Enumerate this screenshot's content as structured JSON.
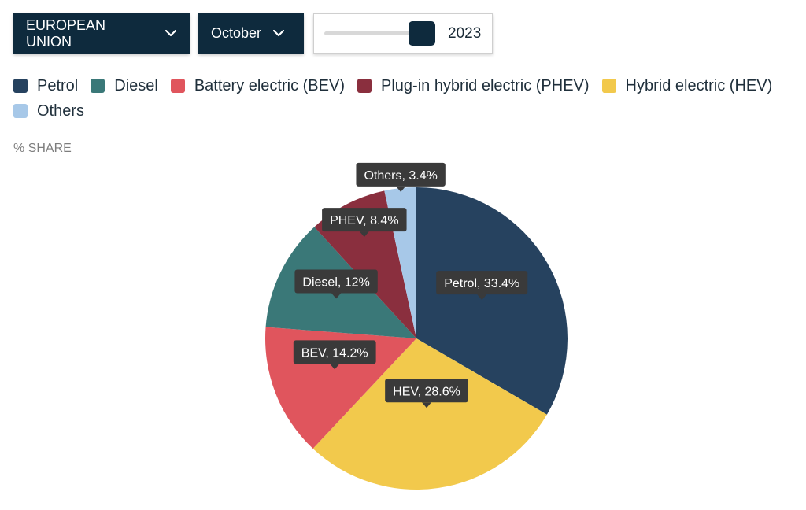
{
  "controls": {
    "region": "EUROPEAN UNION",
    "month": "October",
    "year": "2023",
    "year_level": 0.92,
    "chevron_icon": "chevron-down-icon"
  },
  "axis_label": "% SHARE",
  "colors": {
    "dark_navy": "#0e2a3d",
    "label_bg": "#3a3a3a"
  },
  "chart_data": {
    "type": "pie",
    "title": "",
    "unit": "%",
    "slices": [
      {
        "legend": "Petrol",
        "label": "Petrol, 33.4%",
        "value": 33.4,
        "color": "#26425f"
      },
      {
        "legend": "Hybrid electric (HEV)",
        "label": "HEV, 28.6%",
        "value": 28.6,
        "color": "#f2c94c"
      },
      {
        "legend": "Battery electric (BEV)",
        "label": "BEV, 14.2%",
        "value": 14.2,
        "color": "#e0555d"
      },
      {
        "legend": "Diesel",
        "label": "Diesel, 12%",
        "value": 12,
        "color": "#3a7878"
      },
      {
        "legend": "Plug-in hybrid electric (PHEV)",
        "label": "PHEV, 8.4%",
        "value": 8.4,
        "color": "#8a2f3e"
      },
      {
        "legend": "Others",
        "label": "Others, 3.4%",
        "value": 3.4,
        "color": "#a7c8e8"
      }
    ],
    "legend": [
      {
        "label": "Petrol",
        "color": "#26425f"
      },
      {
        "label": "Diesel",
        "color": "#3a7878"
      },
      {
        "label": "Battery electric (BEV)",
        "color": "#e0555d"
      },
      {
        "label": "Plug-in hybrid electric (PHEV)",
        "color": "#8a2f3e"
      },
      {
        "label": "Hybrid electric (HEV)",
        "color": "#f2c94c"
      },
      {
        "label": "Others",
        "color": "#a7c8e8"
      }
    ]
  }
}
